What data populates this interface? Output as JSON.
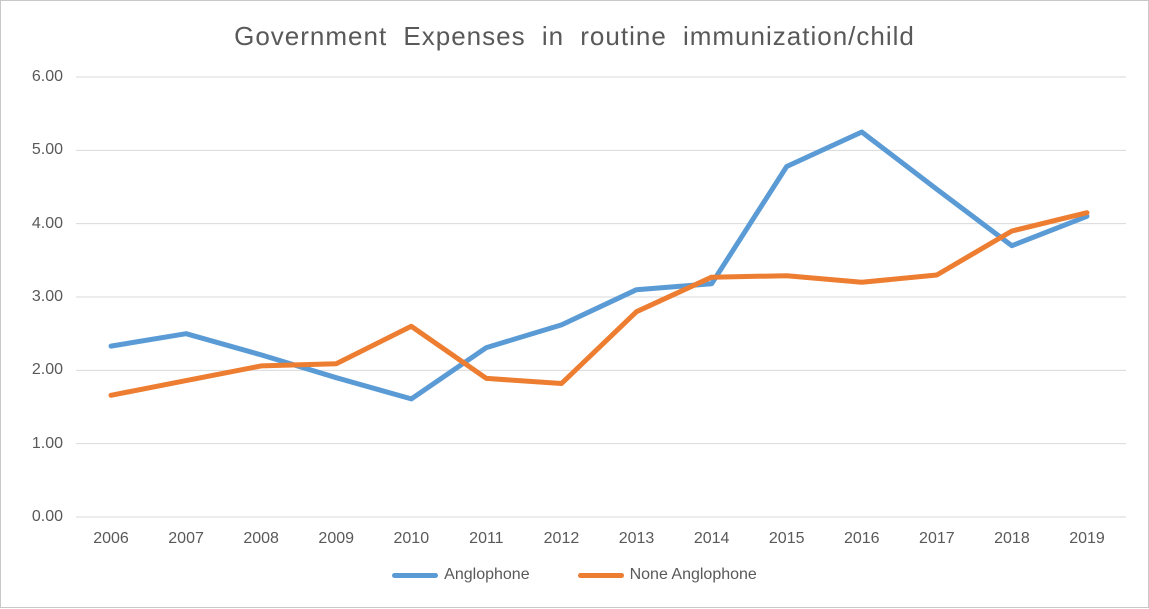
{
  "title": "Government Expenses in routine immunization/child",
  "colors": {
    "anglophone": "#5B9BD5",
    "none_anglophone": "#ED7D31",
    "gridline": "#D9D9D9",
    "text": "#595959",
    "border": "#C9C7C7",
    "background": "#FFFFFF"
  },
  "legend": {
    "items": [
      {
        "label": "Anglophone",
        "color": "#5B9BD5"
      },
      {
        "label": "None Anglophone",
        "color": "#ED7D31"
      }
    ]
  },
  "chart_data": {
    "type": "line",
    "title": "Government Expenses in routine immunization/child",
    "xlabel": "",
    "ylabel": "",
    "categories": [
      "2006",
      "2007",
      "2008",
      "2009",
      "2010",
      "2011",
      "2012",
      "2013",
      "2014",
      "2015",
      "2016",
      "2017",
      "2018",
      "2019"
    ],
    "series": [
      {
        "name": "Anglophone",
        "color": "#5B9BD5",
        "values": [
          2.33,
          2.5,
          2.21,
          1.9,
          1.61,
          2.31,
          2.62,
          3.1,
          3.18,
          4.78,
          5.25,
          4.47,
          3.7,
          4.1
        ]
      },
      {
        "name": "None Anglophone",
        "color": "#ED7D31",
        "values": [
          1.66,
          1.86,
          2.06,
          2.09,
          2.6,
          1.89,
          1.82,
          2.8,
          3.27,
          3.29,
          3.2,
          3.3,
          3.9,
          4.15
        ]
      }
    ],
    "ylim": [
      0,
      6
    ],
    "y_ticks": [
      {
        "label": "6.00",
        "value": 6
      },
      {
        "label": "5.00",
        "value": 5
      },
      {
        "label": "4.00",
        "value": 4
      },
      {
        "label": "3.00",
        "value": 3
      },
      {
        "label": "2.00",
        "value": 2
      },
      {
        "label": "1.00",
        "value": 1
      },
      {
        "label": "0.00",
        "value": 0
      }
    ],
    "grid": "horizontal",
    "legend_position": "bottom"
  }
}
